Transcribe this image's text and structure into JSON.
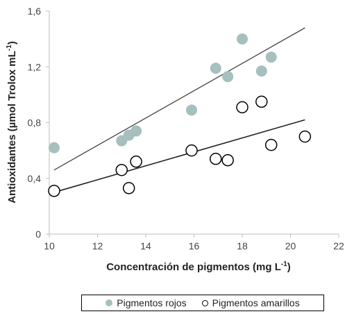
{
  "chart_data": {
    "type": "scatter",
    "title": "",
    "xlabel": "Concentración de pigmentos (mg L",
    "xlabel_sup": "-1",
    "xlabel_end": ")",
    "ylabel": "Antioxidantes (µmol Trolox mL",
    "ylabel_sup": "-1",
    "ylabel_end": ")",
    "xlim": [
      10,
      22
    ],
    "ylim": [
      0,
      1.6
    ],
    "x_ticks": [
      10,
      12,
      14,
      16,
      18,
      20,
      22
    ],
    "y_ticks": [
      0,
      0.4,
      0.8,
      1.2,
      1.6
    ],
    "x_tick_labels": [
      "10",
      "12",
      "14",
      "16",
      "18",
      "20",
      "22"
    ],
    "y_tick_labels": [
      "0",
      "0,4",
      "0,8",
      "1,2",
      "1,6"
    ],
    "grid": false,
    "legend_position": "bottom",
    "series": [
      {
        "name": "Pigmentos rojos",
        "marker": "filled-circle",
        "color": "#a6bfbf",
        "x": [
          10.2,
          13.0,
          13.3,
          13.6,
          15.9,
          16.9,
          17.4,
          18.0,
          18.8,
          19.2
        ],
        "y": [
          0.62,
          0.67,
          0.71,
          0.74,
          0.89,
          1.19,
          1.13,
          1.4,
          1.17,
          1.27
        ],
        "trendline": {
          "x": [
            10.2,
            20.6
          ],
          "y": [
            0.46,
            1.48
          ]
        }
      },
      {
        "name": "Pigmentos amarillos",
        "marker": "open-circle",
        "color": "#000000",
        "x": [
          10.2,
          13.0,
          13.3,
          13.6,
          15.9,
          16.9,
          17.4,
          18.0,
          18.8,
          19.2,
          20.6
        ],
        "y": [
          0.31,
          0.46,
          0.33,
          0.52,
          0.6,
          0.54,
          0.53,
          0.91,
          0.95,
          0.64,
          0.7
        ],
        "trendline": {
          "x": [
            10.2,
            20.6
          ],
          "y": [
            0.3,
            0.82
          ]
        }
      }
    ]
  }
}
